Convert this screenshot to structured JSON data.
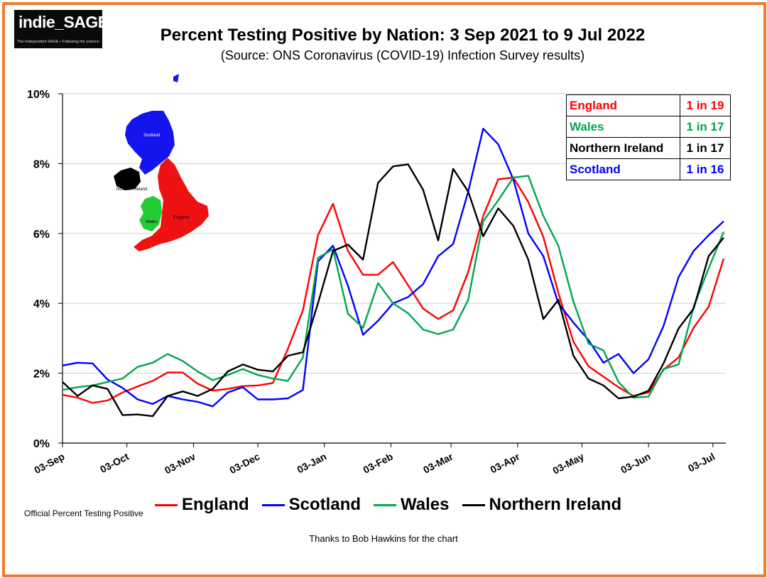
{
  "header": {
    "logo_text": "indie_SAGE",
    "logo_tagline": "The Independent SAGE • Following the science",
    "title": "Percent Testing Positive by Nation: 3 Sep 2021 to 9 Jul 2022",
    "subtitle": "(Source: ONS Coronavirus (COVID-19) Infection Survey results)"
  },
  "map": {
    "labels": [
      "Scotland",
      "Northern Ireland",
      "England",
      "Wales"
    ]
  },
  "stats_box": [
    {
      "nation": "England",
      "value": "1 in 19",
      "color": "#ff0000"
    },
    {
      "nation": "Wales",
      "value": "1 in 17",
      "color": "#00a650"
    },
    {
      "nation": "Northern Ireland",
      "value": "1 in 17",
      "color": "#000000"
    },
    {
      "nation": "Scotland",
      "value": "1 in 16",
      "color": "#0000ff"
    }
  ],
  "footer": {
    "left_note": "Official Percent Testing Positive",
    "credit": "Thanks to Bob Hawkins for the chart"
  },
  "chart_data": {
    "type": "line",
    "title": "Percent Testing Positive by Nation: 3 Sep 2021 to 9 Jul 2022",
    "xlabel": "",
    "ylabel": "",
    "ylim": [
      0,
      10
    ],
    "yticks": [
      "0%",
      "2%",
      "4%",
      "6%",
      "8%",
      "10%"
    ],
    "x_tick_labels": [
      "03-Sep",
      "03-Oct",
      "03-Nov",
      "03-Dec",
      "03-Jan",
      "03-Feb",
      "03-Mar",
      "03-Apr",
      "03-May",
      "03-Jun",
      "03-Jul"
    ],
    "x_tick_days": [
      0,
      30,
      61,
      91,
      122,
      153,
      181,
      212,
      242,
      273,
      303
    ],
    "x_range_days": [
      0,
      309
    ],
    "legend": "bottom",
    "series": [
      {
        "name": "England",
        "color": "#ff0000",
        "points": [
          [
            0,
            1.38
          ],
          [
            7,
            1.3
          ],
          [
            14,
            1.15
          ],
          [
            21,
            1.22
          ],
          [
            28,
            1.45
          ],
          [
            35,
            1.62
          ],
          [
            42,
            1.78
          ],
          [
            49,
            2.02
          ],
          [
            56,
            2.02
          ],
          [
            63,
            1.7
          ],
          [
            70,
            1.5
          ],
          [
            77,
            1.55
          ],
          [
            84,
            1.63
          ],
          [
            91,
            1.65
          ],
          [
            98,
            1.72
          ],
          [
            105,
            2.7
          ],
          [
            112,
            3.8
          ],
          [
            119,
            5.95
          ],
          [
            126,
            6.85
          ],
          [
            133,
            5.5
          ],
          [
            140,
            4.82
          ],
          [
            147,
            4.82
          ],
          [
            154,
            5.18
          ],
          [
            161,
            4.52
          ],
          [
            168,
            3.85
          ],
          [
            175,
            3.55
          ],
          [
            182,
            3.8
          ],
          [
            189,
            4.9
          ],
          [
            196,
            6.5
          ],
          [
            203,
            7.55
          ],
          [
            210,
            7.6
          ],
          [
            217,
            6.9
          ],
          [
            224,
            5.9
          ],
          [
            231,
            4.3
          ],
          [
            238,
            2.9
          ],
          [
            245,
            2.2
          ],
          [
            252,
            1.9
          ],
          [
            259,
            1.6
          ],
          [
            266,
            1.35
          ],
          [
            273,
            1.45
          ],
          [
            280,
            2.1
          ],
          [
            287,
            2.45
          ],
          [
            294,
            3.3
          ],
          [
            301,
            3.9
          ],
          [
            308,
            5.28
          ]
        ]
      },
      {
        "name": "Scotland",
        "color": "#0000ff",
        "points": [
          [
            0,
            2.22
          ],
          [
            7,
            2.3
          ],
          [
            14,
            2.28
          ],
          [
            21,
            1.82
          ],
          [
            28,
            1.58
          ],
          [
            35,
            1.25
          ],
          [
            42,
            1.12
          ],
          [
            49,
            1.35
          ],
          [
            56,
            1.25
          ],
          [
            63,
            1.18
          ],
          [
            70,
            1.05
          ],
          [
            77,
            1.45
          ],
          [
            84,
            1.6
          ],
          [
            91,
            1.25
          ],
          [
            98,
            1.25
          ],
          [
            105,
            1.28
          ],
          [
            112,
            1.52
          ],
          [
            119,
            5.2
          ],
          [
            126,
            5.65
          ],
          [
            133,
            4.5
          ],
          [
            140,
            3.1
          ],
          [
            147,
            3.5
          ],
          [
            154,
            4.0
          ],
          [
            161,
            4.18
          ],
          [
            168,
            4.55
          ],
          [
            175,
            5.35
          ],
          [
            182,
            5.7
          ],
          [
            189,
            7.2
          ],
          [
            196,
            9.0
          ],
          [
            203,
            8.55
          ],
          [
            210,
            7.55
          ],
          [
            217,
            6.0
          ],
          [
            224,
            5.35
          ],
          [
            231,
            4.0
          ],
          [
            238,
            3.45
          ],
          [
            245,
            2.95
          ],
          [
            252,
            2.3
          ],
          [
            259,
            2.55
          ],
          [
            266,
            2.0
          ],
          [
            273,
            2.4
          ],
          [
            280,
            3.35
          ],
          [
            287,
            4.75
          ],
          [
            294,
            5.5
          ],
          [
            301,
            5.95
          ],
          [
            308,
            6.35
          ]
        ]
      },
      {
        "name": "Wales",
        "color": "#00a650",
        "points": [
          [
            0,
            1.52
          ],
          [
            7,
            1.6
          ],
          [
            14,
            1.65
          ],
          [
            21,
            1.75
          ],
          [
            28,
            1.85
          ],
          [
            35,
            2.18
          ],
          [
            42,
            2.3
          ],
          [
            49,
            2.55
          ],
          [
            56,
            2.35
          ],
          [
            63,
            2.05
          ],
          [
            70,
            1.8
          ],
          [
            77,
            1.95
          ],
          [
            84,
            2.12
          ],
          [
            91,
            1.95
          ],
          [
            98,
            1.85
          ],
          [
            105,
            1.78
          ],
          [
            112,
            2.45
          ],
          [
            119,
            5.3
          ],
          [
            126,
            5.55
          ],
          [
            133,
            3.7
          ],
          [
            140,
            3.3
          ],
          [
            147,
            4.58
          ],
          [
            154,
            4.0
          ],
          [
            161,
            3.72
          ],
          [
            168,
            3.25
          ],
          [
            175,
            3.12
          ],
          [
            182,
            3.25
          ],
          [
            189,
            4.1
          ],
          [
            196,
            6.35
          ],
          [
            203,
            6.95
          ],
          [
            210,
            7.6
          ],
          [
            217,
            7.65
          ],
          [
            224,
            6.5
          ],
          [
            231,
            5.65
          ],
          [
            238,
            4.05
          ],
          [
            245,
            2.85
          ],
          [
            252,
            2.65
          ],
          [
            259,
            1.75
          ],
          [
            266,
            1.3
          ],
          [
            273,
            1.33
          ],
          [
            280,
            2.12
          ],
          [
            287,
            2.25
          ],
          [
            294,
            3.9
          ],
          [
            301,
            5.0
          ],
          [
            308,
            6.05
          ]
        ]
      },
      {
        "name": "Northern Ireland",
        "color": "#000000",
        "points": [
          [
            0,
            1.75
          ],
          [
            7,
            1.35
          ],
          [
            14,
            1.65
          ],
          [
            21,
            1.55
          ],
          [
            28,
            0.8
          ],
          [
            35,
            0.82
          ],
          [
            42,
            0.77
          ],
          [
            49,
            1.35
          ],
          [
            56,
            1.48
          ],
          [
            63,
            1.35
          ],
          [
            70,
            1.55
          ],
          [
            77,
            2.05
          ],
          [
            84,
            2.25
          ],
          [
            91,
            2.1
          ],
          [
            98,
            2.05
          ],
          [
            105,
            2.5
          ],
          [
            112,
            2.6
          ],
          [
            119,
            4.0
          ],
          [
            126,
            5.5
          ],
          [
            133,
            5.68
          ],
          [
            140,
            5.25
          ],
          [
            147,
            7.45
          ],
          [
            154,
            7.92
          ],
          [
            161,
            7.98
          ],
          [
            168,
            7.25
          ],
          [
            175,
            5.8
          ],
          [
            182,
            7.85
          ],
          [
            189,
            7.2
          ],
          [
            196,
            5.92
          ],
          [
            203,
            6.72
          ],
          [
            210,
            6.22
          ],
          [
            217,
            5.25
          ],
          [
            224,
            3.55
          ],
          [
            231,
            4.1
          ],
          [
            238,
            2.5
          ],
          [
            245,
            1.85
          ],
          [
            252,
            1.65
          ],
          [
            259,
            1.28
          ],
          [
            266,
            1.33
          ],
          [
            273,
            1.5
          ],
          [
            280,
            2.28
          ],
          [
            287,
            3.28
          ],
          [
            294,
            3.85
          ],
          [
            301,
            5.35
          ],
          [
            308,
            5.88
          ]
        ]
      }
    ]
  }
}
